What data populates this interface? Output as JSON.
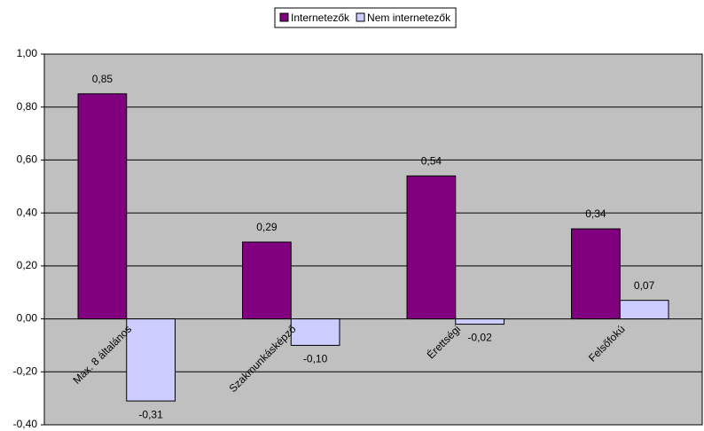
{
  "chart_data": {
    "type": "bar",
    "categories": [
      "Max. 8 általános",
      "Szakmunkásképző",
      "Érettségi",
      "Felsőfokú"
    ],
    "series": [
      {
        "name": "Internetezők",
        "color": "#800080",
        "values": [
          0.85,
          0.29,
          0.54,
          0.34
        ],
        "value_labels": [
          "0,85",
          "0,29",
          "0,54",
          "0,34"
        ]
      },
      {
        "name": "Nem internetezők",
        "color": "#ccccff",
        "values": [
          -0.31,
          -0.1,
          -0.02,
          0.07
        ],
        "value_labels": [
          "-0,31",
          "-0,10",
          "-0,02",
          "0,07"
        ]
      }
    ],
    "ylim": [
      -0.4,
      1.0
    ],
    "yticks": [
      {
        "value": -0.4,
        "label": "-0,40"
      },
      {
        "value": -0.2,
        "label": "-0,20"
      },
      {
        "value": 0,
        "label": "0,00"
      },
      {
        "value": 0.2,
        "label": "0,20"
      },
      {
        "value": 0.4,
        "label": "0,40"
      },
      {
        "value": 0.6,
        "label": "0,60"
      },
      {
        "value": 0.8,
        "label": "0,80"
      },
      {
        "value": 1.0,
        "label": "1,00"
      }
    ],
    "grid": true,
    "legend": "top",
    "plot_background": "#c0c0c0"
  }
}
